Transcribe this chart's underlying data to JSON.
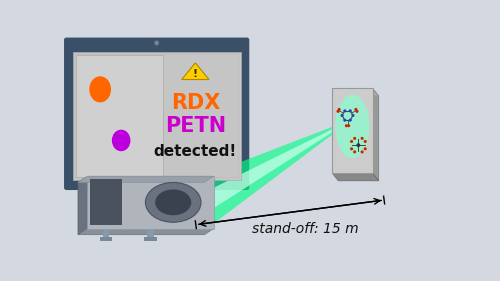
{
  "bg_color": "#d4d8e0",
  "monitor_frame_color": "#3a5068",
  "monitor_screen_color": "#c8c8c8",
  "monitor_stand_color": "#8899aa",
  "monitor_base_color": "#7a8898",
  "orange_circle": "#ff6600",
  "purple_circle": "#bb00dd",
  "warning_yellow": "#ffcc00",
  "warning_black": "#555500",
  "rdx_color": "#ff6600",
  "petn_color": "#cc00cc",
  "detected_color": "#111111",
  "beam_color": "#00ff88",
  "panel_face": "#cccccc",
  "panel_edge": "#999999",
  "panel_side": "#aaaaaa",
  "panel_green": "#88ffcc",
  "device_body": "#b0b5bc",
  "device_dark": "#6a7280",
  "device_darker": "#4a5260",
  "standoff_text": "stand-off: 15 m",
  "rdx_text": "RDX",
  "petn_text": "PETN",
  "detected_text": "detected!"
}
